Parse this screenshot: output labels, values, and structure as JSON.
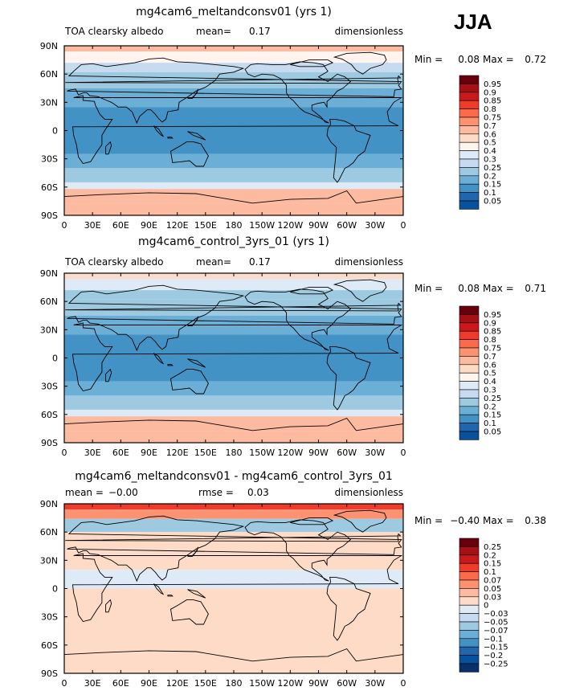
{
  "season": "JJA",
  "chart_data": [
    {
      "type": "heatmap",
      "title": "mg4cam6_meltandconsv01 (yrs 1)",
      "left_label": "TOA clearsky albedo",
      "stat_label": "mean=",
      "stat_value": "0.17",
      "units": "dimensionless",
      "min_label": "Min =",
      "min_value": "0.08",
      "max_label": "Max =",
      "max_value": "0.72",
      "xticks": [
        "0",
        "30E",
        "60E",
        "90E",
        "120E",
        "150E",
        "180",
        "150W",
        "120W",
        "90W",
        "60W",
        "30W",
        "0"
      ],
      "yticks": [
        "90N",
        "60N",
        "30N",
        "0",
        "30S",
        "60S",
        "90S"
      ],
      "colorbar": {
        "levels": [
          "0.95",
          "0.9",
          "0.85",
          "0.8",
          "0.75",
          "0.7",
          "0.6",
          "0.5",
          "0.4",
          "0.3",
          "0.25",
          "0.2",
          "0.15",
          "0.1",
          "0.05"
        ],
        "colors": [
          "#67000d",
          "#a50f15",
          "#cb181d",
          "#ef3b2c",
          "#fb6a4a",
          "#fc9272",
          "#fcbba1",
          "#fddbc7",
          "#fff5ee",
          "#deebf7",
          "#c6dbef",
          "#9ecae1",
          "#6baed6",
          "#4292c6",
          "#2166ac",
          "#08519c"
        ]
      },
      "bands": [
        {
          "lat": [
            90,
            84
          ],
          "value": 0.62
        },
        {
          "lat": [
            84,
            72
          ],
          "value": 0.45
        },
        {
          "lat": [
            72,
            62
          ],
          "value": 0.27
        },
        {
          "lat": [
            62,
            45
          ],
          "value": 0.22
        },
        {
          "lat": [
            45,
            25
          ],
          "value": 0.17
        },
        {
          "lat": [
            25,
            -25
          ],
          "value": 0.12
        },
        {
          "lat": [
            -25,
            -40
          ],
          "value": 0.17
        },
        {
          "lat": [
            -40,
            -55
          ],
          "value": 0.22
        },
        {
          "lat": [
            -55,
            -62
          ],
          "value": 0.35
        },
        {
          "lat": [
            -62,
            -78
          ],
          "value": 0.68
        },
        {
          "lat": [
            -78,
            -90
          ],
          "value": 0.65
        }
      ]
    },
    {
      "type": "heatmap",
      "title": "mg4cam6_control_3yrs_01 (yrs 1)",
      "left_label": "TOA clearsky albedo",
      "stat_label": "mean=",
      "stat_value": "0.17",
      "units": "dimensionless",
      "min_label": "Min =",
      "min_value": "0.08",
      "max_label": "Max =",
      "max_value": "0.71",
      "xticks": [
        "0",
        "30E",
        "60E",
        "90E",
        "120E",
        "150E",
        "180",
        "150W",
        "120W",
        "90W",
        "60W",
        "30W",
        "0"
      ],
      "yticks": [
        "90N",
        "60N",
        "30N",
        "0",
        "30S",
        "60S",
        "90S"
      ],
      "colorbar": {
        "levels": [
          "0.95",
          "0.9",
          "0.85",
          "0.8",
          "0.75",
          "0.7",
          "0.6",
          "0.5",
          "0.4",
          "0.3",
          "0.25",
          "0.2",
          "0.15",
          "0.1",
          "0.05"
        ],
        "colors": [
          "#67000d",
          "#a50f15",
          "#cb181d",
          "#ef3b2c",
          "#fb6a4a",
          "#fc9272",
          "#fcbba1",
          "#fddbc7",
          "#fff5ee",
          "#deebf7",
          "#c6dbef",
          "#9ecae1",
          "#6baed6",
          "#4292c6",
          "#2166ac",
          "#08519c"
        ]
      },
      "bands": [
        {
          "lat": [
            90,
            84
          ],
          "value": 0.55
        },
        {
          "lat": [
            84,
            72
          ],
          "value": 0.35
        },
        {
          "lat": [
            72,
            62
          ],
          "value": 0.22
        },
        {
          "lat": [
            62,
            45
          ],
          "value": 0.2
        },
        {
          "lat": [
            45,
            25
          ],
          "value": 0.17
        },
        {
          "lat": [
            25,
            -25
          ],
          "value": 0.12
        },
        {
          "lat": [
            -25,
            -40
          ],
          "value": 0.17
        },
        {
          "lat": [
            -40,
            -55
          ],
          "value": 0.22
        },
        {
          "lat": [
            -55,
            -62
          ],
          "value": 0.35
        },
        {
          "lat": [
            -62,
            -78
          ],
          "value": 0.68
        },
        {
          "lat": [
            -78,
            -90
          ],
          "value": 0.65
        }
      ]
    },
    {
      "type": "heatmap",
      "title": "mg4cam6_meltandconsv01 - mg4cam6_control_3yrs_01",
      "left_label": "mean =",
      "left_value": "−0.00",
      "stat_label": "rmse =",
      "stat_value": "0.03",
      "units": "dimensionless",
      "min_label": "Min =",
      "min_value": "−0.40",
      "max_label": "Max =",
      "max_value": "0.38",
      "xticks": [
        "0",
        "30E",
        "60E",
        "90E",
        "120E",
        "150E",
        "180",
        "150W",
        "120W",
        "90W",
        "60W",
        "30W",
        "0"
      ],
      "yticks": [
        "90N",
        "60N",
        "30N",
        "0",
        "30S",
        "60S",
        "90S"
      ],
      "colorbar": {
        "levels": [
          "0.25",
          "0.2",
          "0.15",
          "0.1",
          "0.07",
          "0.05",
          "0.03",
          "0",
          "−0.03",
          "−0.05",
          "−0.07",
          "−0.1",
          "−0.15",
          "−0.2",
          "−0.25"
        ],
        "colors": [
          "#67000d",
          "#a50f15",
          "#cb181d",
          "#ef3b2c",
          "#fb6a4a",
          "#fc9272",
          "#fcbba1",
          "#fddbc7",
          "#deebf7",
          "#c6dbef",
          "#9ecae1",
          "#6baed6",
          "#4292c6",
          "#2166ac",
          "#08519c",
          "#08306b"
        ]
      },
      "bands": [
        {
          "lat": [
            90,
            84
          ],
          "value": 0.12
        },
        {
          "lat": [
            84,
            74
          ],
          "value": 0.06
        },
        {
          "lat": [
            74,
            60
          ],
          "value": -0.06
        },
        {
          "lat": [
            60,
            20
          ],
          "value": 0.01
        },
        {
          "lat": [
            20,
            0
          ],
          "value": -0.01
        },
        {
          "lat": [
            0,
            -90
          ],
          "value": 0.01
        }
      ]
    }
  ]
}
